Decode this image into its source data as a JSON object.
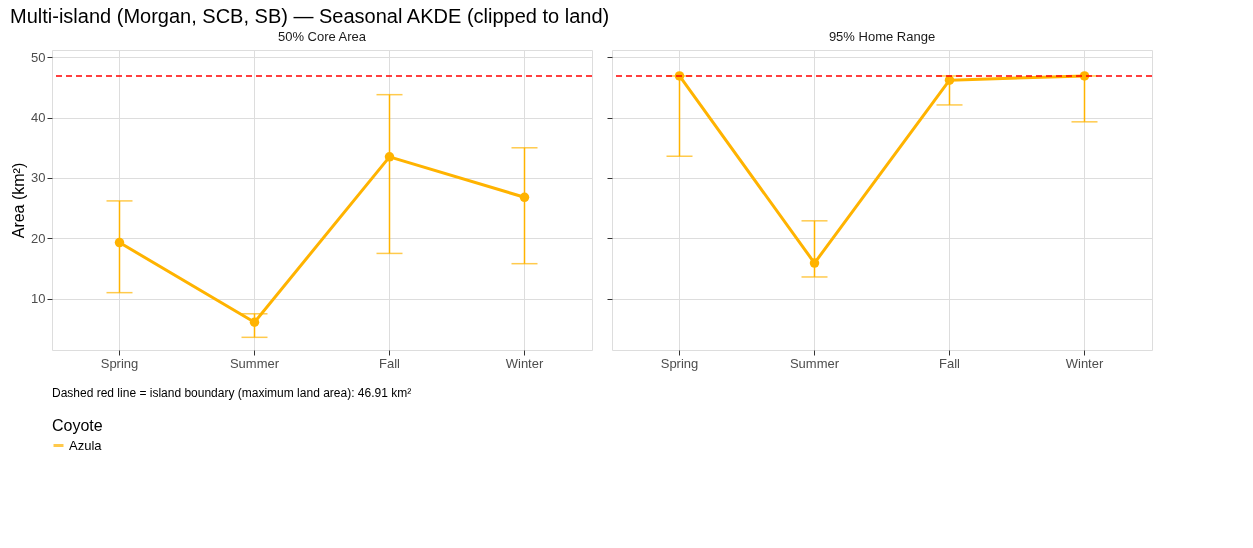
{
  "chart_data": [
    {
      "type": "line",
      "title": "Multi-island (Morgan, SCB, SB) — Seasonal AKDE (clipped to land)",
      "subtitle": "50% Core Area",
      "ylabel": "Area (km²)",
      "legend_title": "Coyote",
      "legend": "bottom",
      "grid": true,
      "marker": "circle",
      "line_style": "solid",
      "categories": [
        "Spring",
        "Summer",
        "Fall",
        "Winter"
      ],
      "ylim": [
        1.5,
        51.2
      ],
      "yticks": [
        10,
        20,
        30,
        40,
        50
      ],
      "series": [
        {
          "name": "Azula",
          "color": "#ffb300",
          "values": [
            19.3,
            6.1,
            33.5,
            26.8
          ],
          "errors": [
            [
              11.0,
              26.2
            ],
            [
              3.6,
              7.5
            ],
            [
              17.5,
              43.8
            ],
            [
              15.8,
              35.0
            ]
          ]
        }
      ],
      "ref_lines": [
        {
          "axis": "y",
          "value": 46.91,
          "color": "#ff0000",
          "line_style": "dashed"
        }
      ],
      "annotations": [
        "Dashed red line = island boundary (maximum land area): 46.91 km²"
      ]
    },
    {
      "type": "line",
      "subtitle": "95% Home Range",
      "grid": true,
      "marker": "circle",
      "line_style": "solid",
      "tick_labels": "x",
      "categories": [
        "Spring",
        "Summer",
        "Fall",
        "Winter"
      ],
      "ylim": [
        1.5,
        51.2
      ],
      "yticks": [
        10,
        20,
        30,
        40,
        50
      ],
      "series": [
        {
          "name": "Azula",
          "color": "#ffb300",
          "values": [
            46.9,
            15.9,
            46.2,
            46.9
          ],
          "errors": [
            [
              33.6,
              46.9
            ],
            [
              13.6,
              22.9
            ],
            [
              42.1,
              46.9
            ],
            [
              39.3,
              46.9
            ]
          ]
        }
      ],
      "ref_lines": [
        {
          "axis": "y",
          "value": 46.91,
          "color": "#ff0000",
          "line_style": "dashed"
        }
      ]
    }
  ]
}
